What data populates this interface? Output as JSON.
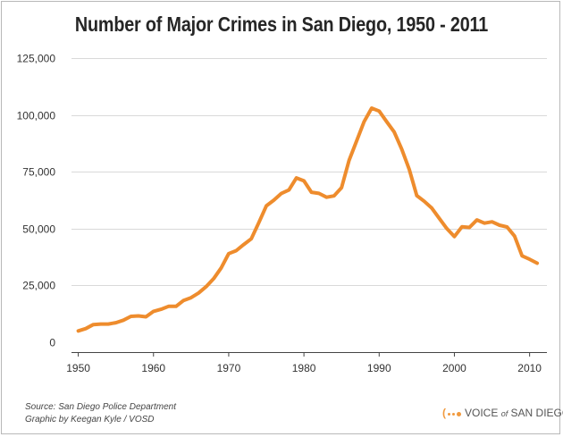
{
  "title": "Number of Major Crimes in San Diego, 1950 - 2011",
  "source_line1": "Source: San Diego Police Department",
  "source_line2": "Graphic by Keegan Kyle / VOSD",
  "logo": {
    "voice": "VOICE",
    "of": "of",
    "name": "SAN DIEGO",
    "accent_color": "#f19a3e"
  },
  "chart_data": {
    "type": "line",
    "title": "Number of Major Crimes in San Diego, 1950 - 2011",
    "xlabel": "",
    "ylabel": "",
    "xlim": [
      1950,
      2011
    ],
    "ylim": [
      0,
      125000
    ],
    "x_ticks": [
      1950,
      1960,
      1970,
      1980,
      1990,
      2000,
      2010
    ],
    "y_ticks": [
      0,
      25000,
      50000,
      75000,
      100000,
      125000
    ],
    "y_tick_labels": [
      "0",
      "25,000",
      "50,000",
      "75,000",
      "100,000",
      "125,000"
    ],
    "grid": "horizontal",
    "legend": "none",
    "line_color": "#ee8c2d",
    "series": [
      {
        "x": [
          1950,
          1951,
          1952,
          1953,
          1954,
          1955,
          1956,
          1957,
          1958,
          1959,
          1960,
          1961,
          1962,
          1963,
          1964,
          1965,
          1966,
          1967,
          1968,
          1969,
          1970,
          1971,
          1972,
          1973,
          1974,
          1975,
          1976,
          1977,
          1978,
          1979,
          1980,
          1981,
          1982,
          1983,
          1984,
          1985,
          1986,
          1987,
          1988,
          1989,
          1990,
          1991,
          1992,
          1993,
          1994,
          1995,
          1996,
          1997,
          1998,
          1999,
          2000,
          2001,
          2002,
          2003,
          2004,
          2005,
          2006,
          2007,
          2008,
          2009,
          2010,
          2011
        ],
        "values": [
          5000,
          6000,
          7800,
          8000,
          8000,
          8600,
          9700,
          11400,
          11600,
          11200,
          13600,
          14500,
          15800,
          15800,
          18400,
          19600,
          21700,
          24500,
          28000,
          32700,
          39000,
          40300,
          43000,
          45500,
          52600,
          60000,
          62500,
          65500,
          67000,
          72300,
          71000,
          66000,
          65500,
          63800,
          64400,
          68000,
          80000,
          88500,
          97000,
          103000,
          101700,
          97000,
          92500,
          85000,
          76000,
          64500,
          62000,
          59000,
          54500,
          50000,
          46500,
          50800,
          50500,
          53800,
          52400,
          53000,
          51500,
          50700,
          46700,
          38000,
          36500,
          34800
        ]
      }
    ]
  }
}
